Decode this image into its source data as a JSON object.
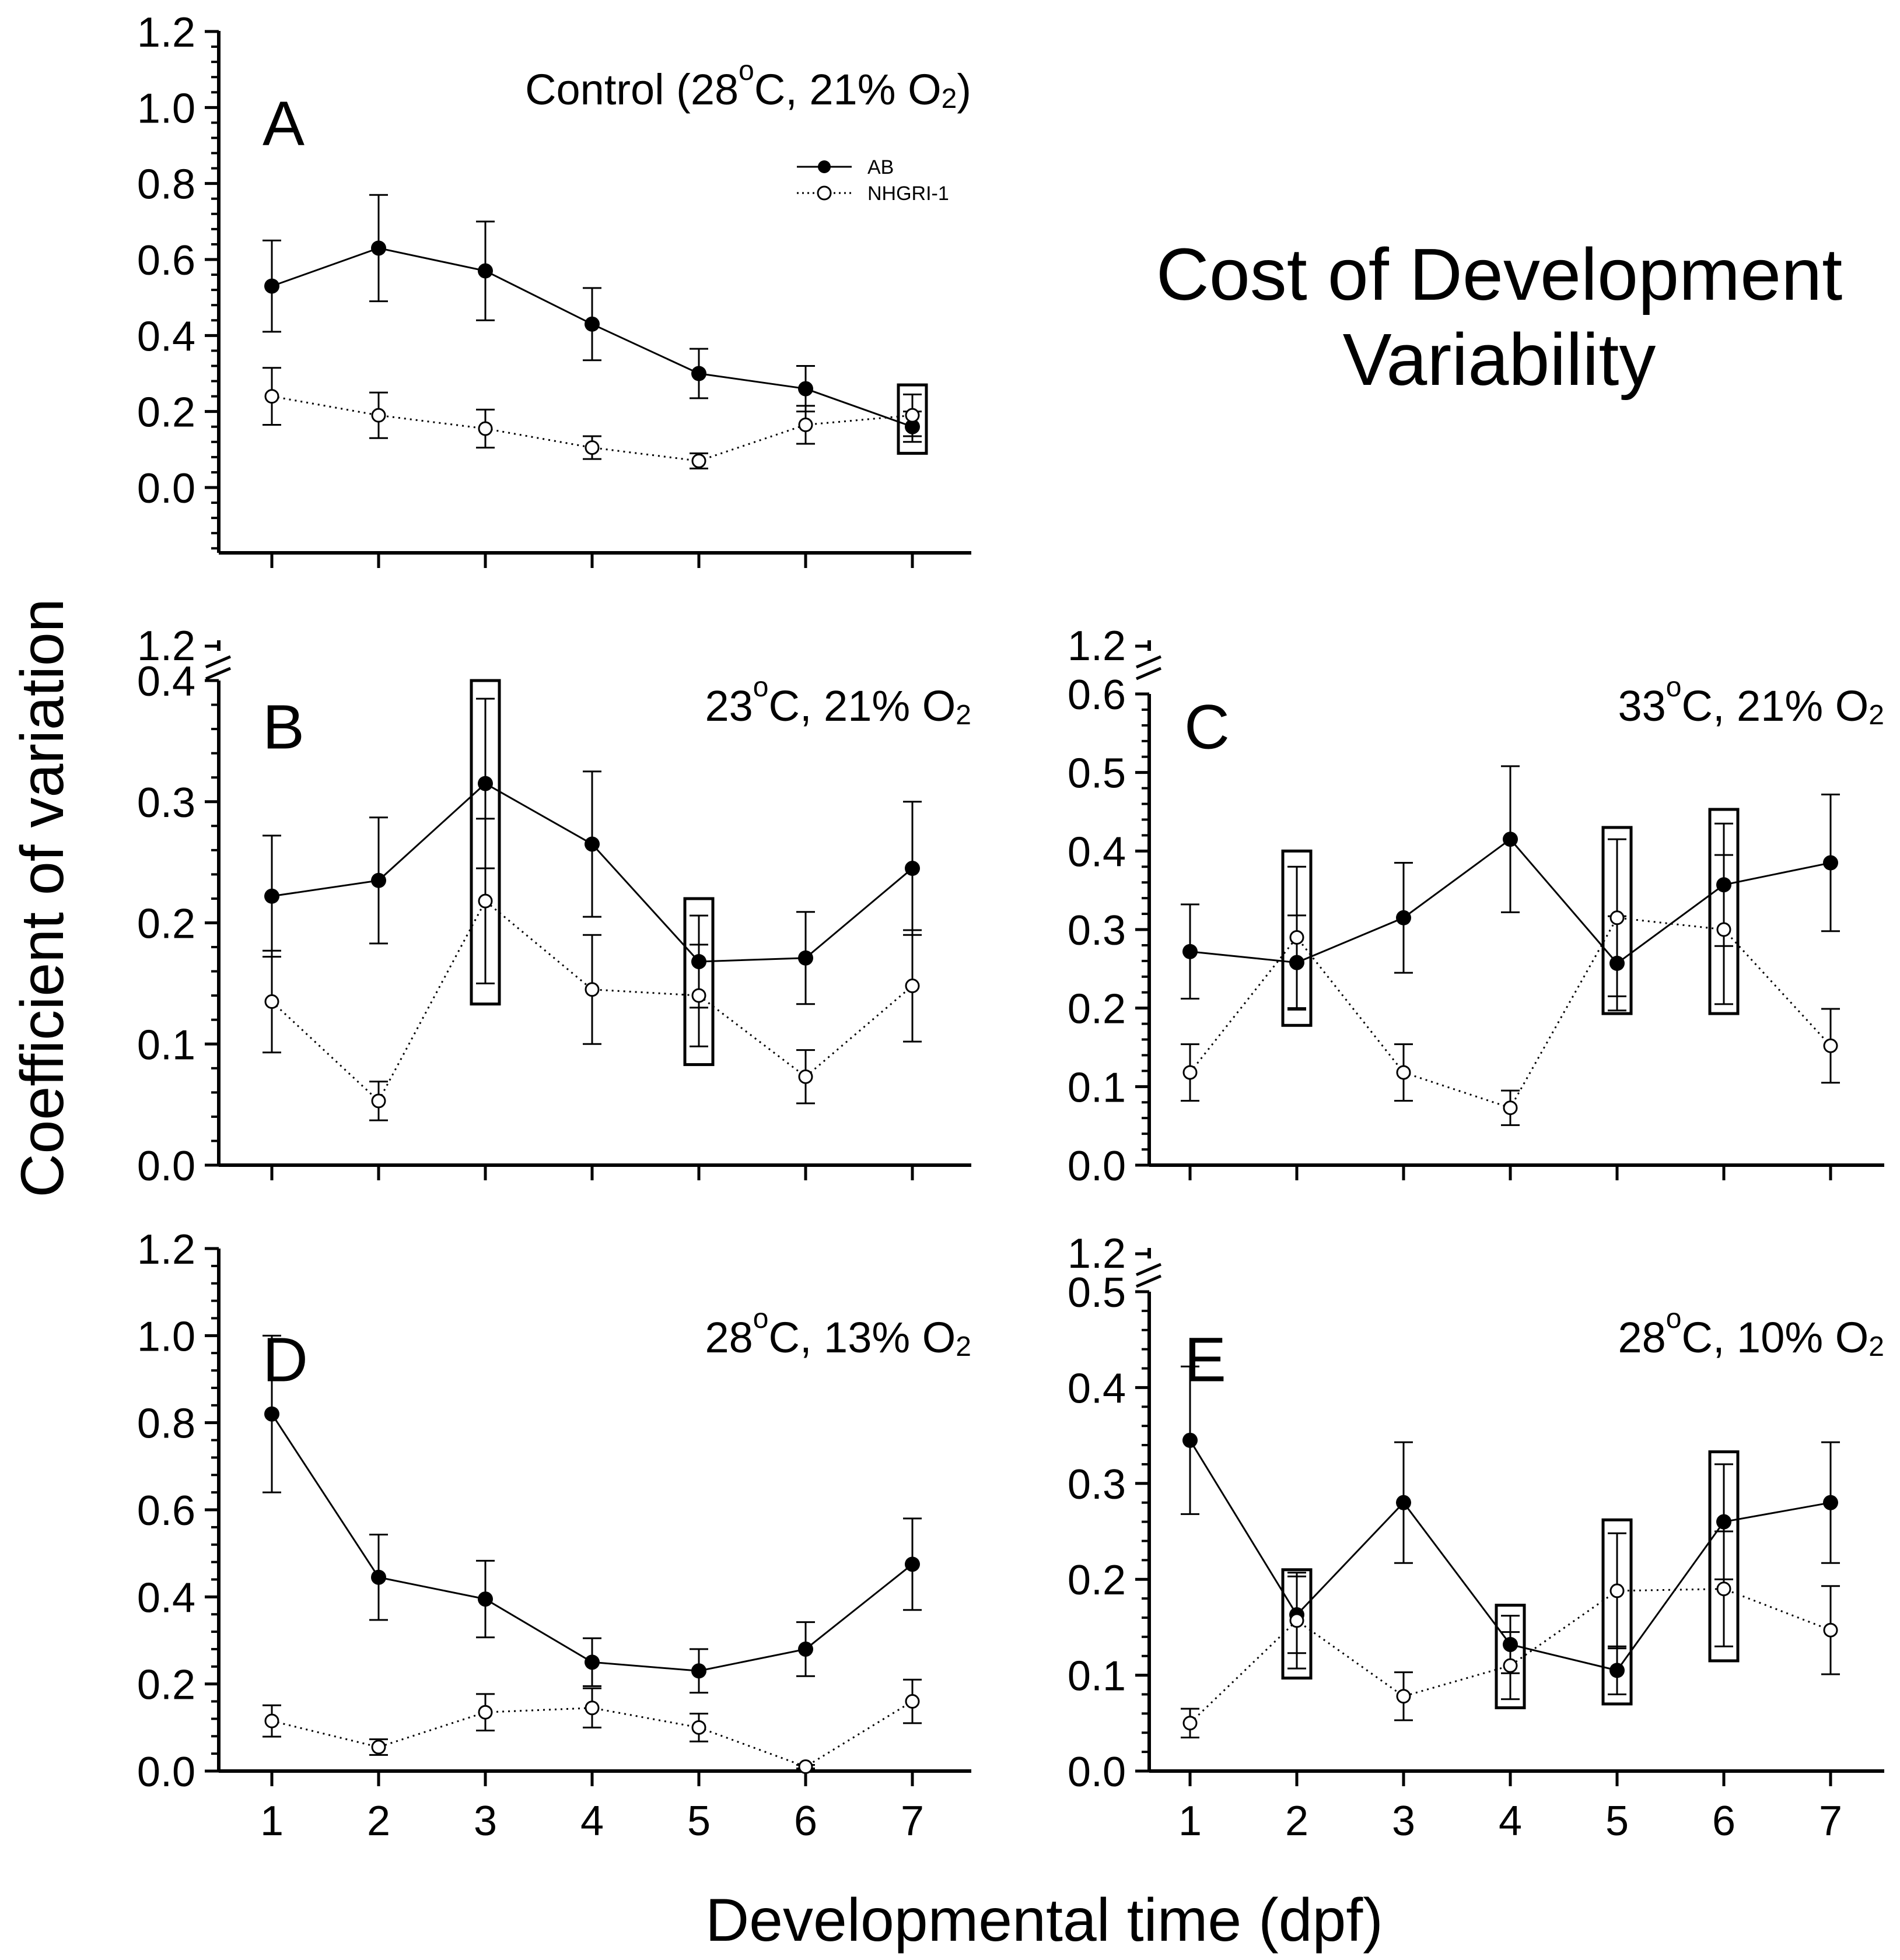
{
  "figure": {
    "title_lines": [
      "Cost of Development",
      "Variability"
    ],
    "ylabel": "Coefficient of variation",
    "xlabel": "Developmental time (dpf)",
    "legend": [
      {
        "label": "AB",
        "marker": "filled-circle",
        "line": "solid"
      },
      {
        "label": "NHGRI-1",
        "marker": "open-circle",
        "line": "dotted"
      }
    ],
    "colors": {
      "ink": "#000000",
      "background": "#ffffff"
    }
  },
  "chart_data": [
    {
      "id": "A",
      "type": "line",
      "panel_label": "A",
      "condition_main": "Control (28",
      "condition_sup": "o",
      "condition_mid": "C, 21% O",
      "condition_sub": "2",
      "condition_end": ")",
      "x": [
        1,
        2,
        3,
        4,
        5,
        6,
        7
      ],
      "ylim": [
        -0.18,
        1.2
      ],
      "yticks": [
        0.0,
        0.2,
        0.4,
        0.6,
        0.8,
        1.0,
        1.2
      ],
      "ytick_labels": [
        "0.0",
        "0.2",
        "0.4",
        "0.6",
        "0.8",
        "1.0",
        "1.2"
      ],
      "axis_break": null,
      "series": [
        {
          "name": "AB",
          "values": [
            0.53,
            0.63,
            0.57,
            0.43,
            0.3,
            0.26,
            0.16
          ],
          "errors": [
            0.12,
            0.14,
            0.13,
            0.095,
            0.065,
            0.06,
            0.04
          ]
        },
        {
          "name": "NHGRI-1",
          "values": [
            0.24,
            0.19,
            0.155,
            0.105,
            0.07,
            0.165,
            0.19
          ],
          "errors": [
            0.075,
            0.06,
            0.05,
            0.03,
            0.02,
            0.05,
            0.055
          ]
        }
      ],
      "highlight_boxes": [
        {
          "x": 7,
          "ymin": 0.09,
          "ymax": 0.27
        }
      ],
      "show_xtick_labels": false
    },
    {
      "id": "B",
      "type": "line",
      "panel_label": "B",
      "condition_main": "23",
      "condition_sup": "o",
      "condition_mid": "C, 21% O",
      "condition_sub": "2",
      "condition_end": "",
      "x": [
        1,
        2,
        3,
        4,
        5,
        6,
        7
      ],
      "ylim": [
        0,
        0.4
      ],
      "yticks": [
        0.0,
        0.1,
        0.2,
        0.3,
        0.4
      ],
      "ytick_labels": [
        "0.0",
        "0.1",
        "0.2",
        "0.3",
        "0.4"
      ],
      "axis_break": {
        "label": "1.2"
      },
      "series": [
        {
          "name": "AB",
          "values": [
            0.222,
            0.235,
            0.315,
            0.265,
            0.168,
            0.171,
            0.245
          ],
          "errors": [
            0.05,
            0.052,
            0.07,
            0.06,
            0.038,
            0.038,
            0.055
          ]
        },
        {
          "name": "NHGRI-1",
          "values": [
            0.135,
            0.053,
            0.218,
            0.145,
            0.14,
            0.073,
            0.148
          ],
          "errors": [
            0.042,
            0.016,
            0.068,
            0.045,
            0.042,
            0.022,
            0.046
          ]
        }
      ],
      "highlight_boxes": [
        {
          "x": 3,
          "ymin": 0.133,
          "ymax": 0.4
        },
        {
          "x": 5,
          "ymin": 0.083,
          "ymax": 0.22
        }
      ],
      "show_xtick_labels": false
    },
    {
      "id": "C",
      "type": "line",
      "panel_label": "C",
      "condition_main": "33",
      "condition_sup": "o",
      "condition_mid": "C, 21% O",
      "condition_sub": "2",
      "condition_end": "",
      "x": [
        1,
        2,
        3,
        4,
        5,
        6,
        7
      ],
      "ylim": [
        0,
        0.6
      ],
      "yticks": [
        0.0,
        0.1,
        0.2,
        0.3,
        0.4,
        0.5,
        0.6
      ],
      "ytick_labels": [
        "0.0",
        "0.1",
        "0.2",
        "0.3",
        "0.4",
        "0.5",
        "0.6"
      ],
      "axis_break": {
        "label": "1.2"
      },
      "series": [
        {
          "name": "AB",
          "values": [
            0.272,
            0.258,
            0.315,
            0.415,
            0.257,
            0.357,
            0.385
          ],
          "errors": [
            0.06,
            0.06,
            0.07,
            0.093,
            0.06,
            0.078,
            0.087
          ]
        },
        {
          "name": "NHGRI-1",
          "values": [
            0.118,
            0.29,
            0.118,
            0.073,
            0.315,
            0.3,
            0.152
          ],
          "errors": [
            0.036,
            0.09,
            0.036,
            0.022,
            0.1,
            0.095,
            0.047
          ]
        }
      ],
      "highlight_boxes": [
        {
          "x": 2,
          "ymin": 0.178,
          "ymax": 0.4
        },
        {
          "x": 5,
          "ymin": 0.193,
          "ymax": 0.43
        },
        {
          "x": 6,
          "ymin": 0.193,
          "ymax": 0.453
        }
      ],
      "show_xtick_labels": false
    },
    {
      "id": "D",
      "type": "line",
      "panel_label": "D",
      "condition_main": "28",
      "condition_sup": "o",
      "condition_mid": "C, 13% O",
      "condition_sub": "2",
      "condition_end": "",
      "x": [
        1,
        2,
        3,
        4,
        5,
        6,
        7
      ],
      "ylim": [
        0,
        1.2
      ],
      "yticks": [
        0.0,
        0.2,
        0.4,
        0.6,
        0.8,
        1.0,
        1.2
      ],
      "ytick_labels": [
        "0.0",
        "0.2",
        "0.4",
        "0.6",
        "0.8",
        "1.0",
        "1.2"
      ],
      "axis_break": null,
      "series": [
        {
          "name": "AB",
          "values": [
            0.82,
            0.445,
            0.395,
            0.25,
            0.23,
            0.28,
            0.475
          ],
          "errors": [
            0.18,
            0.098,
            0.088,
            0.055,
            0.05,
            0.062,
            0.105
          ]
        },
        {
          "name": "NHGRI-1",
          "values": [
            0.115,
            0.055,
            0.135,
            0.145,
            0.1,
            0.01,
            0.16
          ],
          "errors": [
            0.036,
            0.018,
            0.042,
            0.045,
            0.032,
            0.004,
            0.05
          ]
        }
      ],
      "highlight_boxes": [],
      "show_xtick_labels": true
    },
    {
      "id": "E",
      "type": "line",
      "panel_label": "E",
      "condition_main": "28",
      "condition_sup": "o",
      "condition_mid": "C, 10% O",
      "condition_sub": "2",
      "condition_end": "",
      "x": [
        1,
        2,
        3,
        4,
        5,
        6,
        7
      ],
      "ylim": [
        0,
        0.5
      ],
      "yticks": [
        0.0,
        0.1,
        0.2,
        0.3,
        0.4,
        0.5
      ],
      "ytick_labels": [
        "0.0",
        "0.1",
        "0.2",
        "0.3",
        "0.4",
        "0.5"
      ],
      "axis_break": {
        "label": "1.2"
      },
      "series": [
        {
          "name": "AB",
          "values": [
            0.345,
            0.163,
            0.28,
            0.132,
            0.105,
            0.26,
            0.28
          ],
          "errors": [
            0.077,
            0.04,
            0.063,
            0.03,
            0.025,
            0.06,
            0.063
          ]
        },
        {
          "name": "NHGRI-1",
          "values": [
            0.05,
            0.157,
            0.078,
            0.11,
            0.188,
            0.19,
            0.147
          ],
          "errors": [
            0.015,
            0.05,
            0.025,
            0.035,
            0.06,
            0.06,
            0.046
          ]
        }
      ],
      "highlight_boxes": [
        {
          "x": 2,
          "ymin": 0.097,
          "ymax": 0.21
        },
        {
          "x": 4,
          "ymin": 0.066,
          "ymax": 0.173
        },
        {
          "x": 5,
          "ymin": 0.07,
          "ymax": 0.262
        },
        {
          "x": 6,
          "ymin": 0.115,
          "ymax": 0.333
        }
      ],
      "show_xtick_labels": true
    }
  ]
}
